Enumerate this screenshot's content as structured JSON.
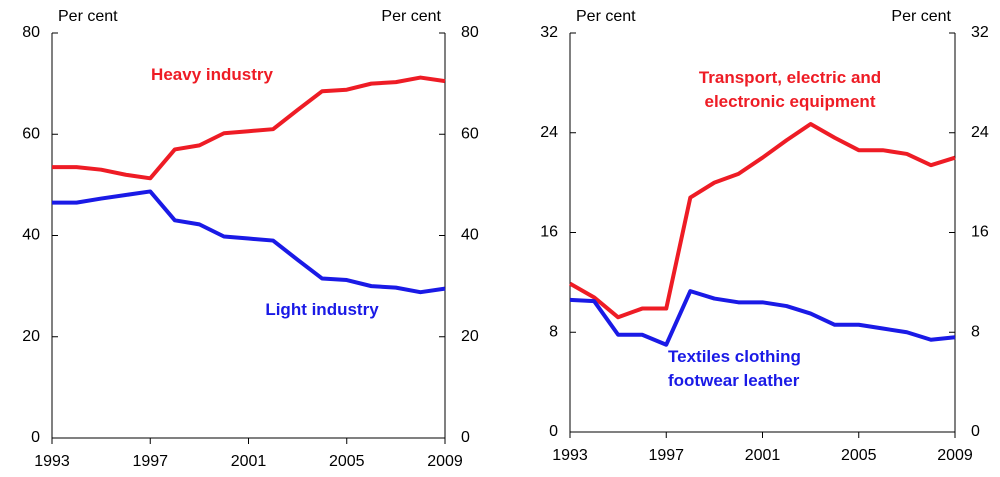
{
  "chart_data": [
    {
      "type": "line",
      "ylabel": "Per cent",
      "y2label": "Per cent",
      "x": [
        1993,
        1994,
        1995,
        1996,
        1997,
        1998,
        1999,
        2000,
        2001,
        2002,
        2003,
        2004,
        2005,
        2006,
        2007,
        2008,
        2009
      ],
      "xlim": [
        1993,
        2009
      ],
      "xticks": [
        1993,
        1997,
        2001,
        2005,
        2009
      ],
      "ylim": [
        0,
        80
      ],
      "yticks": [
        0,
        20,
        40,
        60,
        80
      ],
      "series": [
        {
          "name": "Heavy industry",
          "color": "#ee1c25",
          "values": [
            53.5,
            53.5,
            53,
            52,
            51.3,
            57,
            57.8,
            60.2,
            60.6,
            61,
            64.8,
            68.5,
            68.8,
            70,
            70.3,
            71.2,
            70.5
          ]
        },
        {
          "name": "Light industry",
          "color": "#1a1ae6",
          "values": [
            46.5,
            46.5,
            47.3,
            48,
            48.7,
            43,
            42.2,
            39.8,
            39.4,
            39,
            35.2,
            31.5,
            31.2,
            30,
            29.7,
            28.8,
            29.5
          ]
        }
      ]
    },
    {
      "type": "line",
      "ylabel": "Per cent",
      "y2label": "Per cent",
      "x": [
        1993,
        1994,
        1995,
        1996,
        1997,
        1998,
        1999,
        2000,
        2001,
        2002,
        2003,
        2004,
        2005,
        2006,
        2007,
        2008,
        2009
      ],
      "xlim": [
        1993,
        2009
      ],
      "xticks": [
        1993,
        1997,
        2001,
        2005,
        2009
      ],
      "ylim": [
        0,
        32
      ],
      "yticks": [
        0,
        8,
        16,
        24,
        32
      ],
      "series": [
        {
          "name": "Transport, electric and electronic equipment",
          "color": "#ee1c25",
          "values": [
            11.9,
            10.8,
            9.2,
            9.9,
            9.9,
            18.8,
            20,
            20.7,
            22,
            23.4,
            24.7,
            23.6,
            22.6,
            22.6,
            22.3,
            21.4,
            22
          ]
        },
        {
          "name": "Textiles clothing footwear leather",
          "color": "#1a1ae6",
          "values": [
            10.6,
            10.5,
            7.8,
            7.8,
            7.0,
            11.3,
            10.7,
            10.4,
            10.4,
            10.1,
            9.5,
            8.6,
            8.6,
            8.3,
            8,
            7.4,
            7.6
          ]
        }
      ]
    }
  ]
}
